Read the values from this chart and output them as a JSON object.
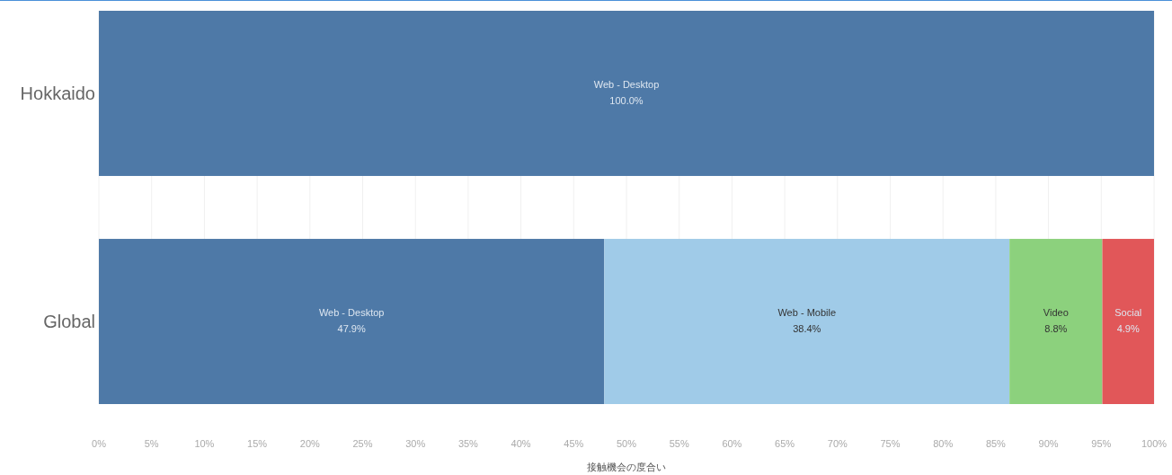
{
  "chart_data": {
    "type": "bar",
    "orientation": "horizontal",
    "stacked": true,
    "xlabel": "接触機会の度合い",
    "categories": [
      "Hokkaido",
      "Global"
    ],
    "series": [
      {
        "name": "Web - Desktop",
        "color": "#4e79a7",
        "values": [
          100.0,
          47.9
        ],
        "value_labels": [
          "100.0%",
          "47.9%"
        ]
      },
      {
        "name": "Web - Mobile",
        "color": "#a0cbe8",
        "values": [
          null,
          38.4
        ],
        "value_labels": [
          null,
          "38.4%"
        ]
      },
      {
        "name": "Video",
        "color": "#8cd17d",
        "values": [
          null,
          8.8
        ],
        "value_labels": [
          null,
          "8.8%"
        ]
      },
      {
        "name": "Social",
        "color": "#e15759",
        "values": [
          null,
          4.9
        ],
        "value_labels": [
          null,
          "4.9%"
        ]
      }
    ],
    "xlim": [
      0,
      100
    ],
    "xticks": [
      {
        "value": 0,
        "label": "0%"
      },
      {
        "value": 5,
        "label": "5%"
      },
      {
        "value": 10,
        "label": "10%"
      },
      {
        "value": 15,
        "label": "15%"
      },
      {
        "value": 20,
        "label": "20%"
      },
      {
        "value": 25,
        "label": "25%"
      },
      {
        "value": 30,
        "label": "30%"
      },
      {
        "value": 35,
        "label": "35%"
      },
      {
        "value": 40,
        "label": "40%"
      },
      {
        "value": 45,
        "label": "45%"
      },
      {
        "value": 50,
        "label": "50%"
      },
      {
        "value": 55,
        "label": "55%"
      },
      {
        "value": 60,
        "label": "60%"
      },
      {
        "value": 65,
        "label": "65%"
      },
      {
        "value": 70,
        "label": "70%"
      },
      {
        "value": 75,
        "label": "75%"
      },
      {
        "value": 80,
        "label": "80%"
      },
      {
        "value": 85,
        "label": "85%"
      },
      {
        "value": 90,
        "label": "90%"
      },
      {
        "value": 95,
        "label": "95%"
      },
      {
        "value": 100,
        "label": "100%"
      }
    ],
    "grid": "x",
    "legend": false
  }
}
